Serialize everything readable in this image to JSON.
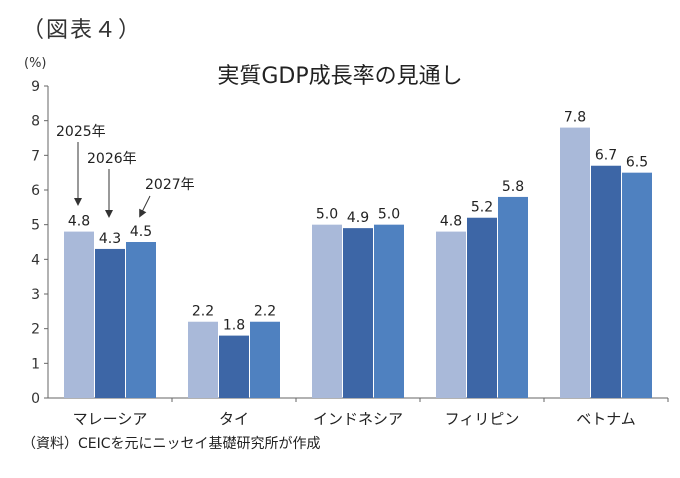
{
  "figure_label": "（図表４）",
  "source_note": "（資料）CEICを元にニッセイ基礎研究所が作成",
  "chart_data": {
    "type": "bar",
    "title": "実質GDP成長率の見通し",
    "ylabel": "(%)",
    "xlabel": "",
    "ylim": [
      0,
      9
    ],
    "yticks": [
      0,
      1,
      2,
      3,
      4,
      5,
      6,
      7,
      8,
      9
    ],
    "grid": false,
    "categories": [
      "マレーシア",
      "タイ",
      "インドネシア",
      "フィリピン",
      "ベトナム"
    ],
    "series": [
      {
        "name": "2025年",
        "color": "#a9b9d9",
        "values": [
          4.8,
          2.2,
          5.0,
          4.8,
          7.8
        ],
        "labels": [
          "4.8",
          "2.2",
          "5.0",
          "4.8",
          "7.8"
        ]
      },
      {
        "name": "2026年",
        "color": "#3d66a6",
        "values": [
          4.3,
          1.8,
          4.9,
          5.2,
          6.7
        ],
        "labels": [
          "4.3",
          "1.8",
          "4.9",
          "5.2",
          "6.7"
        ]
      },
      {
        "name": "2027年",
        "color": "#4f81c0",
        "values": [
          4.5,
          2.2,
          5.0,
          5.8,
          6.5
        ],
        "labels": [
          "4.5",
          "2.2",
          "5.0",
          "5.8",
          "6.5"
        ]
      }
    ],
    "annotations": [
      "2025年",
      "2026年",
      "2027年"
    ]
  }
}
